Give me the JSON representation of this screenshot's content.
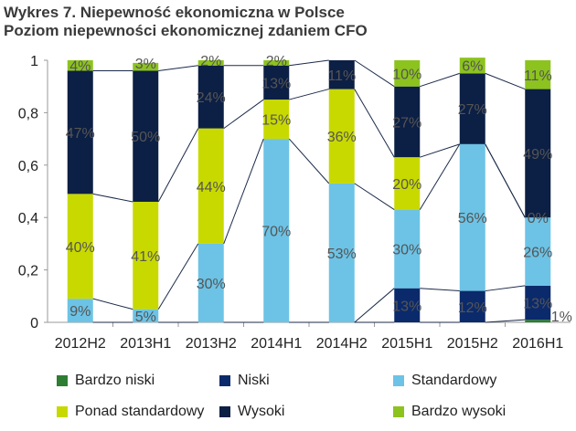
{
  "page": {
    "title_line1": "Wykres 7. Niepewność ekonomiczna w  Polsce",
    "title_line2": "Poziom niepewności ekonomicznej zdaniem CFO"
  },
  "chart_data": {
    "type": "bar",
    "stacked": true,
    "categories": [
      "2012H2",
      "2013H1",
      "2013H2",
      "2014H1",
      "2014H2",
      "2015H1",
      "2015H2",
      "2016H1"
    ],
    "ylim": [
      0,
      1
    ],
    "yticks": [
      0,
      0.2,
      0.4,
      0.6,
      0.8,
      1
    ],
    "ytick_labels": [
      "0",
      "0,2",
      "0,4",
      "0,6",
      "0,8",
      "1"
    ],
    "series": [
      {
        "name": "Bardzo niski",
        "color": "#2e7d32",
        "values": [
          0,
          0,
          0,
          0,
          0,
          0,
          0,
          0.01
        ],
        "labels": [
          "",
          "",
          "",
          "",
          "",
          "",
          "",
          "1%"
        ]
      },
      {
        "name": "Niski",
        "color": "#0b2a6b",
        "values": [
          0,
          0,
          0,
          0,
          0,
          0.13,
          0.12,
          0.13
        ],
        "labels": [
          "",
          "",
          "",
          "",
          "",
          "13%",
          "12%",
          "13%"
        ]
      },
      {
        "name": "Standardowy",
        "color": "#6cc3e6",
        "values": [
          0.09,
          0.05,
          0.3,
          0.7,
          0.53,
          0.3,
          0.56,
          0.26
        ],
        "labels": [
          "9%",
          "5%",
          "30%",
          "70%",
          "53%",
          "30%",
          "56%",
          "26%"
        ]
      },
      {
        "name": "Ponad standardowy",
        "color": "#c8d900",
        "values": [
          0.4,
          0.41,
          0.44,
          0.15,
          0.36,
          0.2,
          0,
          0
        ],
        "labels": [
          "40%",
          "41%",
          "44%",
          "15%",
          "36%",
          "20%",
          "",
          "0%"
        ]
      },
      {
        "name": "Wysoki",
        "color": "#0c1f44",
        "values": [
          0.47,
          0.5,
          0.24,
          0.13,
          0.11,
          0.27,
          0.27,
          0.49
        ],
        "labels": [
          "47%",
          "50%",
          "24%",
          "13%",
          "11%",
          "27%",
          "27%",
          "49%"
        ]
      },
      {
        "name": "Bardzo wysoki",
        "color": "#8cc31f",
        "values": [
          0.04,
          0.03,
          0.02,
          0.02,
          0,
          0.1,
          0.06,
          0.11
        ],
        "labels": [
          "4%",
          "3%",
          "2%",
          "2%",
          "",
          "10%",
          "6%",
          "11%"
        ]
      }
    ],
    "legend_position": "bottom",
    "grid": false
  }
}
